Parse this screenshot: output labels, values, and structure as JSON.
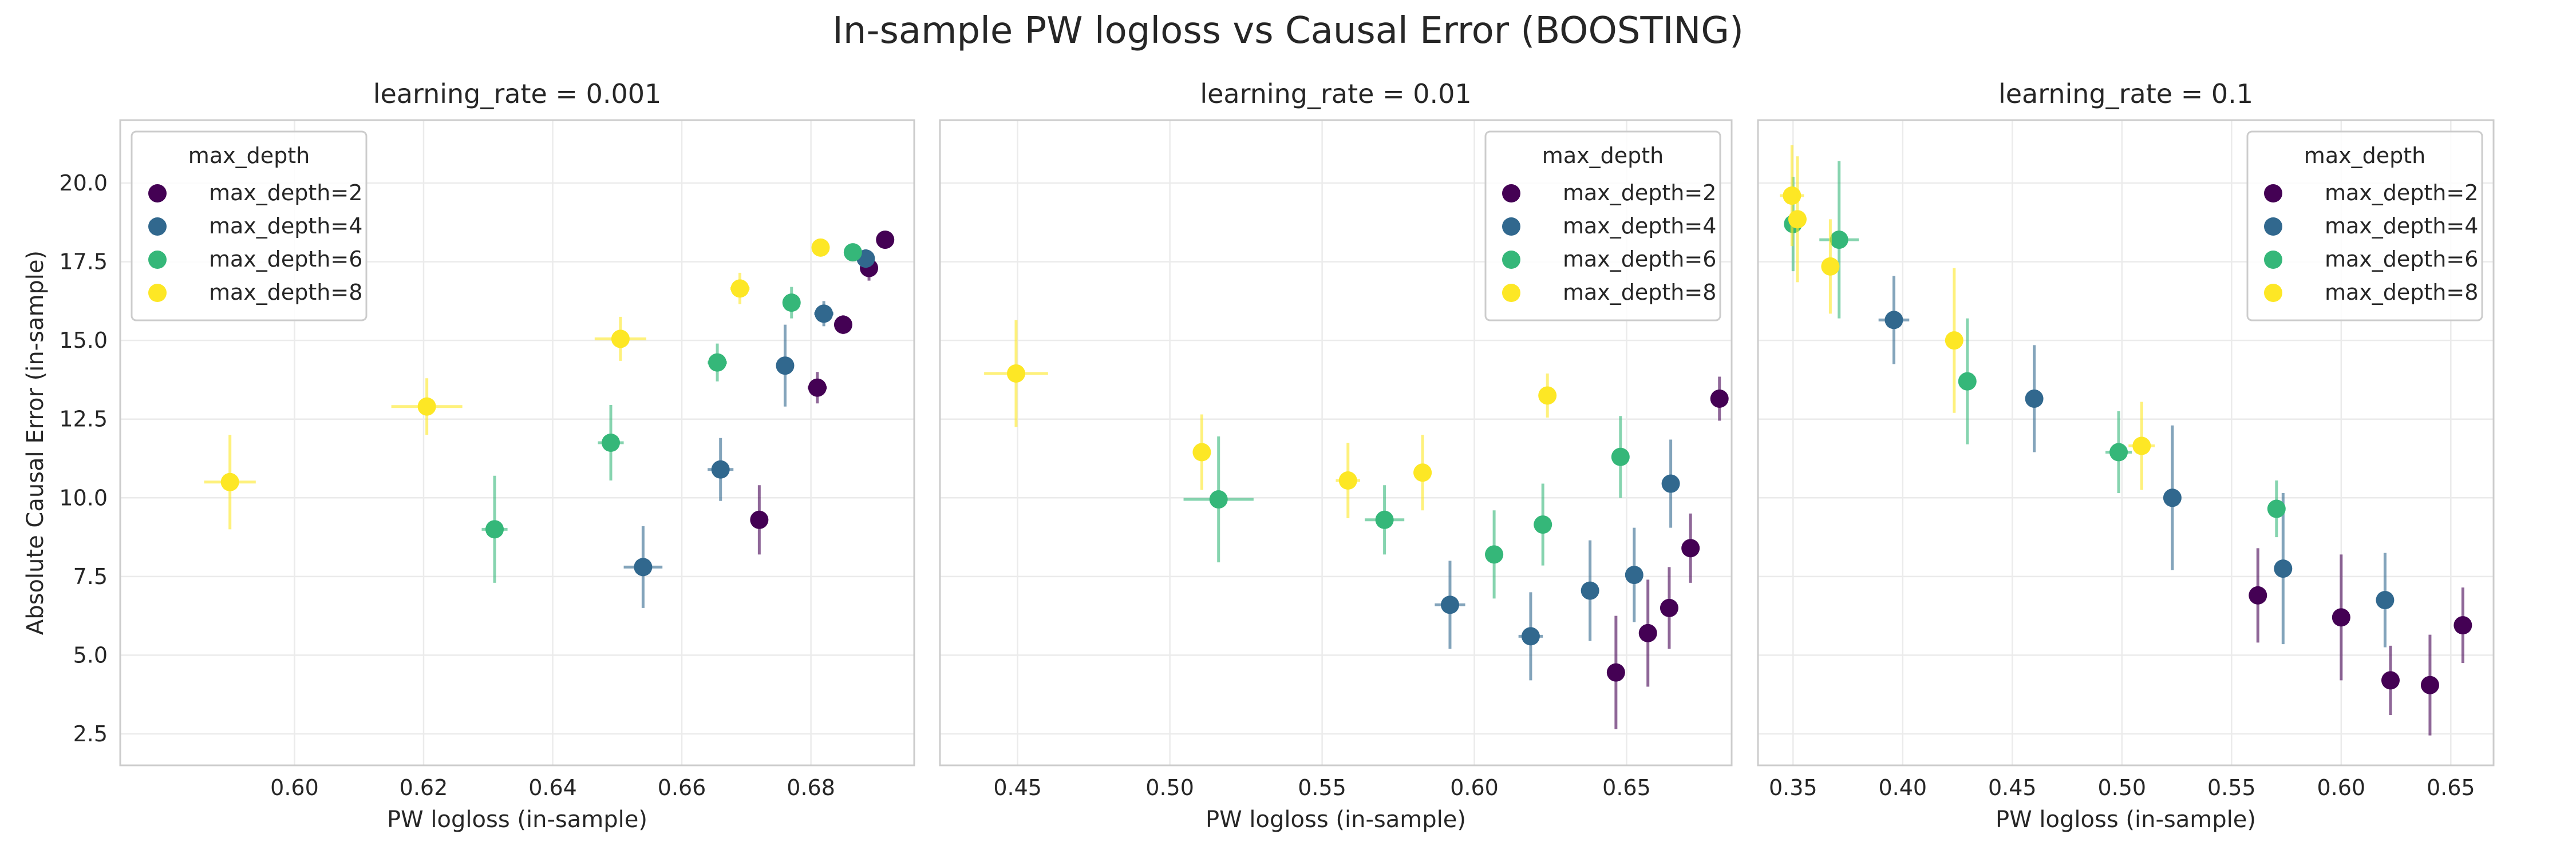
{
  "figure": {
    "title": "In-sample PW logloss vs Causal Error (BOOSTING)"
  },
  "chart_data": [
    {
      "type": "scatter",
      "title": "learning_rate = 0.001",
      "xlabel": "PW logloss (in-sample)",
      "ylabel": "Absolute Causal Error (in-sample)",
      "xlim": [
        0.573,
        0.696
      ],
      "ylim": [
        1.5,
        22.0
      ],
      "xticks": [
        "0.60",
        "0.62",
        "0.64",
        "0.66",
        "0.68"
      ],
      "yticks": [
        "2.5",
        "5.0",
        "7.5",
        "10.0",
        "12.5",
        "15.0",
        "17.5",
        "20.0"
      ],
      "grid": true,
      "legend": {
        "title": "max_depth",
        "placement": "top-left"
      },
      "series": [
        {
          "name": "max_depth=2",
          "color": "#440154",
          "points": [
            {
              "x": 0.672,
              "y": 9.3,
              "xerr": 0.0,
              "yerr": 1.1
            },
            {
              "x": 0.681,
              "y": 13.5,
              "xerr": 0.0015,
              "yerr": 0.5
            },
            {
              "x": 0.685,
              "y": 15.5,
              "xerr": 0.001,
              "yerr": 0.3
            },
            {
              "x": 0.689,
              "y": 17.3,
              "xerr": 0.001,
              "yerr": 0.4
            },
            {
              "x": 0.6915,
              "y": 18.2,
              "xerr": 0.0,
              "yerr": 0.2
            }
          ]
        },
        {
          "name": "max_depth=4",
          "color": "#31688e",
          "points": [
            {
              "x": 0.654,
              "y": 7.8,
              "xerr": 0.003,
              "yerr": 1.3
            },
            {
              "x": 0.666,
              "y": 10.9,
              "xerr": 0.002,
              "yerr": 1.0
            },
            {
              "x": 0.676,
              "y": 14.2,
              "xerr": 0.0,
              "yerr": 1.3
            },
            {
              "x": 0.682,
              "y": 15.85,
              "xerr": 0.0015,
              "yerr": 0.4
            },
            {
              "x": 0.6885,
              "y": 17.6,
              "xerr": 0.001,
              "yerr": 0.3
            }
          ]
        },
        {
          "name": "max_depth=6",
          "color": "#35b779",
          "points": [
            {
              "x": 0.631,
              "y": 9.0,
              "xerr": 0.002,
              "yerr": 1.7
            },
            {
              "x": 0.649,
              "y": 11.75,
              "xerr": 0.002,
              "yerr": 1.2
            },
            {
              "x": 0.6655,
              "y": 14.3,
              "xerr": 0.0015,
              "yerr": 0.6
            },
            {
              "x": 0.677,
              "y": 16.2,
              "xerr": 0.001,
              "yerr": 0.5
            },
            {
              "x": 0.6865,
              "y": 17.8,
              "xerr": 0.001,
              "yerr": 0.2
            }
          ]
        },
        {
          "name": "max_depth=8",
          "color": "#fde725",
          "points": [
            {
              "x": 0.59,
              "y": 10.5,
              "xerr": 0.004,
              "yerr": 1.5
            },
            {
              "x": 0.6205,
              "y": 12.9,
              "xerr": 0.0055,
              "yerr": 0.9
            },
            {
              "x": 0.6505,
              "y": 15.05,
              "xerr": 0.004,
              "yerr": 0.7
            },
            {
              "x": 0.669,
              "y": 16.65,
              "xerr": 0.0015,
              "yerr": 0.5
            },
            {
              "x": 0.6815,
              "y": 17.95,
              "xerr": 0.001,
              "yerr": 0.2
            }
          ]
        }
      ]
    },
    {
      "type": "scatter",
      "title": "learning_rate = 0.01",
      "xlabel": "PW logloss (in-sample)",
      "ylabel": "",
      "xlim": [
        0.4245,
        0.6845
      ],
      "ylim": [
        1.5,
        22.0
      ],
      "xticks": [
        "0.45",
        "0.50",
        "0.55",
        "0.60",
        "0.65"
      ],
      "yticks": [],
      "grid": true,
      "legend": {
        "title": "max_depth",
        "placement": "top-right"
      },
      "series": [
        {
          "name": "max_depth=2",
          "color": "#440154",
          "points": [
            {
              "x": 0.6465,
              "y": 4.45,
              "xerr": 0.0,
              "yerr": 1.8
            },
            {
              "x": 0.657,
              "y": 5.7,
              "xerr": 0.001,
              "yerr": 1.7
            },
            {
              "x": 0.664,
              "y": 6.5,
              "xerr": 0.0,
              "yerr": 1.3
            },
            {
              "x": 0.671,
              "y": 8.4,
              "xerr": 0.0,
              "yerr": 1.1
            },
            {
              "x": 0.6805,
              "y": 13.15,
              "xerr": 0.0,
              "yerr": 0.7
            }
          ]
        },
        {
          "name": "max_depth=4",
          "color": "#31688e",
          "points": [
            {
              "x": 0.592,
              "y": 6.6,
              "xerr": 0.005,
              "yerr": 1.4
            },
            {
              "x": 0.6185,
              "y": 5.6,
              "xerr": 0.004,
              "yerr": 1.4
            },
            {
              "x": 0.638,
              "y": 7.05,
              "xerr": 0.0,
              "yerr": 1.6
            },
            {
              "x": 0.6525,
              "y": 7.55,
              "xerr": 0.001,
              "yerr": 1.5
            },
            {
              "x": 0.6645,
              "y": 10.45,
              "xerr": 0.001,
              "yerr": 1.4
            }
          ]
        },
        {
          "name": "max_depth=6",
          "color": "#35b779",
          "points": [
            {
              "x": 0.516,
              "y": 9.95,
              "xerr": 0.0115,
              "yerr": 2.0
            },
            {
              "x": 0.5705,
              "y": 9.3,
              "xerr": 0.0065,
              "yerr": 1.1
            },
            {
              "x": 0.6065,
              "y": 8.2,
              "xerr": 0.003,
              "yerr": 1.4
            },
            {
              "x": 0.6225,
              "y": 9.15,
              "xerr": 0.003,
              "yerr": 1.3
            },
            {
              "x": 0.648,
              "y": 11.3,
              "xerr": 0.001,
              "yerr": 1.3
            }
          ]
        },
        {
          "name": "max_depth=8",
          "color": "#fde725",
          "points": [
            {
              "x": 0.4495,
              "y": 13.95,
              "xerr": 0.0105,
              "yerr": 1.7
            },
            {
              "x": 0.5105,
              "y": 11.45,
              "xerr": 0.003,
              "yerr": 1.2
            },
            {
              "x": 0.5585,
              "y": 10.55,
              "xerr": 0.004,
              "yerr": 1.2
            },
            {
              "x": 0.583,
              "y": 10.8,
              "xerr": 0.003,
              "yerr": 1.2
            },
            {
              "x": 0.624,
              "y": 13.25,
              "xerr": 0.002,
              "yerr": 0.7
            }
          ]
        }
      ]
    },
    {
      "type": "scatter",
      "title": "learning_rate = 0.1",
      "xlabel": "PW logloss (in-sample)",
      "ylabel": "",
      "xlim": [
        0.334,
        0.6695
      ],
      "ylim": [
        1.5,
        22.0
      ],
      "xticks": [
        "0.35",
        "0.40",
        "0.45",
        "0.50",
        "0.55",
        "0.60",
        "0.65"
      ],
      "yticks": [],
      "grid": true,
      "legend": {
        "title": "max_depth",
        "placement": "top-right"
      },
      "series": [
        {
          "name": "max_depth=2",
          "color": "#440154",
          "points": [
            {
              "x": 0.562,
              "y": 6.9,
              "xerr": 0.0,
              "yerr": 1.5
            },
            {
              "x": 0.6,
              "y": 6.2,
              "xerr": 0.0,
              "yerr": 2.0
            },
            {
              "x": 0.6225,
              "y": 4.2,
              "xerr": 0.0,
              "yerr": 1.1
            },
            {
              "x": 0.6405,
              "y": 4.05,
              "xerr": 0.0,
              "yerr": 1.6
            },
            {
              "x": 0.6555,
              "y": 5.95,
              "xerr": 0.0,
              "yerr": 1.2
            }
          ]
        },
        {
          "name": "max_depth=4",
          "color": "#31688e",
          "points": [
            {
              "x": 0.396,
              "y": 15.65,
              "xerr": 0.007,
              "yerr": 1.4
            },
            {
              "x": 0.46,
              "y": 13.15,
              "xerr": 0.0,
              "yerr": 1.7
            },
            {
              "x": 0.523,
              "y": 10.0,
              "xerr": 0.0,
              "yerr": 2.3
            },
            {
              "x": 0.5735,
              "y": 7.75,
              "xerr": 0.0,
              "yerr": 2.4
            },
            {
              "x": 0.62,
              "y": 6.75,
              "xerr": 0.0,
              "yerr": 1.5
            }
          ]
        },
        {
          "name": "max_depth=6",
          "color": "#35b779",
          "points": [
            {
              "x": 0.35,
              "y": 18.7,
              "xerr": 0.004,
              "yerr": 1.5
            },
            {
              "x": 0.371,
              "y": 18.2,
              "xerr": 0.009,
              "yerr": 2.5
            },
            {
              "x": 0.4295,
              "y": 13.7,
              "xerr": 0.0,
              "yerr": 2.0
            },
            {
              "x": 0.4985,
              "y": 11.45,
              "xerr": 0.006,
              "yerr": 1.3
            },
            {
              "x": 0.5705,
              "y": 9.65,
              "xerr": 0.001,
              "yerr": 0.9
            }
          ]
        },
        {
          "name": "max_depth=8",
          "color": "#fde725",
          "points": [
            {
              "x": 0.3495,
              "y": 19.6,
              "xerr": 0.0055,
              "yerr": 1.6
            },
            {
              "x": 0.352,
              "y": 18.85,
              "xerr": 0.001,
              "yerr": 2.0
            },
            {
              "x": 0.367,
              "y": 17.35,
              "xerr": 0.0,
              "yerr": 1.5
            },
            {
              "x": 0.4235,
              "y": 15.0,
              "xerr": 0.002,
              "yerr": 2.3
            },
            {
              "x": 0.509,
              "y": 11.65,
              "xerr": 0.006,
              "yerr": 1.4
            }
          ]
        }
      ]
    }
  ]
}
